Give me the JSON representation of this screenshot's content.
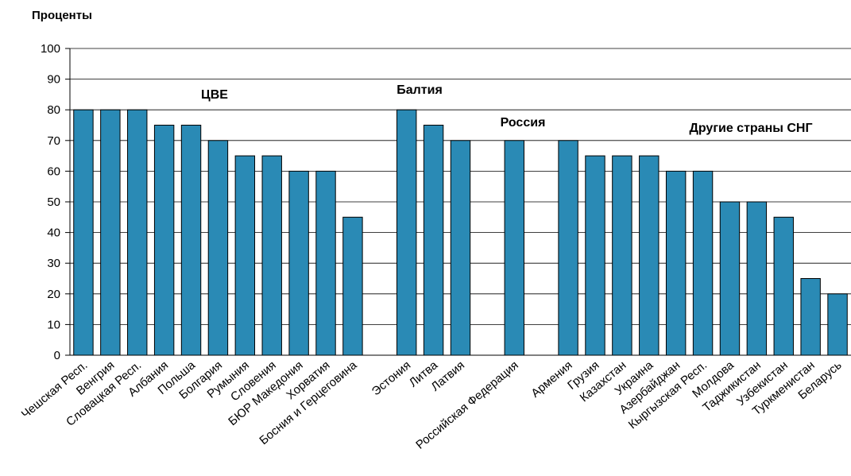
{
  "chart_data": {
    "type": "bar",
    "ylabel": "Проценты",
    "annotations": [
      "ЦВЕ",
      "Балтия",
      "Россия",
      "Другие страны СНГ"
    ],
    "categories": [
      "Чешская Респ.",
      "Венгрия",
      "Словацкая Респ.",
      "Албания",
      "Польша",
      "Болгария",
      "Румыния",
      "Словения",
      "БЮР Македония",
      "Хорватия",
      "Босния и Герцеговина",
      null,
      "Эстония",
      "Литва",
      "Латвия",
      null,
      "Российская Федерация",
      null,
      "Армения",
      "Грузия",
      "Казахстан",
      "Украина",
      "Азербайджан",
      "Кыргызская Респ.",
      "Молдова",
      "Таджикистан",
      "Узбекистан",
      "Туркменистан",
      "Беларусь"
    ],
    "values": [
      80,
      80,
      80,
      75,
      75,
      70,
      65,
      65,
      60,
      60,
      45,
      null,
      80,
      75,
      70,
      null,
      70,
      null,
      70,
      65,
      65,
      65,
      60,
      60,
      50,
      50,
      45,
      25,
      20
    ],
    "color": "#2a8ab5",
    "ylim": [
      0,
      100
    ],
    "yticks": [
      0,
      10,
      20,
      30,
      40,
      50,
      60,
      70,
      80,
      90,
      100
    ],
    "grid": true
  }
}
